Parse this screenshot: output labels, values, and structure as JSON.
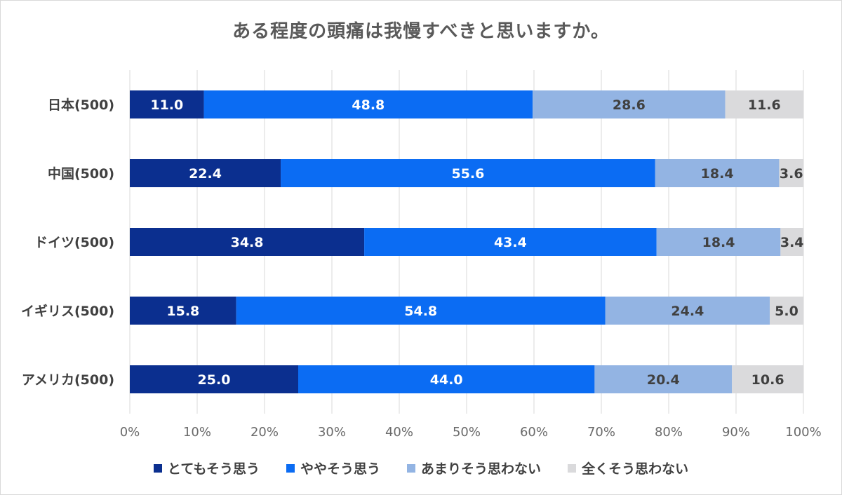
{
  "chart_data": {
    "type": "bar",
    "orientation": "horizontal",
    "stacked": true,
    "percent": true,
    "title": "ある程度の頭痛は我慢すべきと思いますか。",
    "categories": [
      "日本(500)",
      "中国(500)",
      "ドイツ(500)",
      "イギリス(500)",
      "アメリカ(500)"
    ],
    "series": [
      {
        "name": "とてもそう思う",
        "color": "#0b2f8f",
        "label_color": "#ffffff",
        "values": [
          11.0,
          22.4,
          34.8,
          15.8,
          25.0
        ]
      },
      {
        "name": "ややそう思う",
        "color": "#0b6cf3",
        "label_color": "#ffffff",
        "values": [
          48.8,
          55.6,
          43.4,
          54.8,
          44.0
        ]
      },
      {
        "name": "あまりそう思わない",
        "color": "#93b4e3",
        "label_color": "#404040",
        "values": [
          28.6,
          18.4,
          18.4,
          24.4,
          20.4
        ]
      },
      {
        "name": "全くそう思わない",
        "color": "#dadadc",
        "label_color": "#404040",
        "values": [
          11.6,
          3.6,
          3.4,
          5.0,
          10.6
        ]
      }
    ],
    "xlim": [
      0,
      100
    ],
    "xticks": [
      "0%",
      "10%",
      "20%",
      "30%",
      "40%",
      "50%",
      "60%",
      "70%",
      "80%",
      "90%",
      "100%"
    ],
    "grid": true,
    "legend_position": "bottom"
  }
}
